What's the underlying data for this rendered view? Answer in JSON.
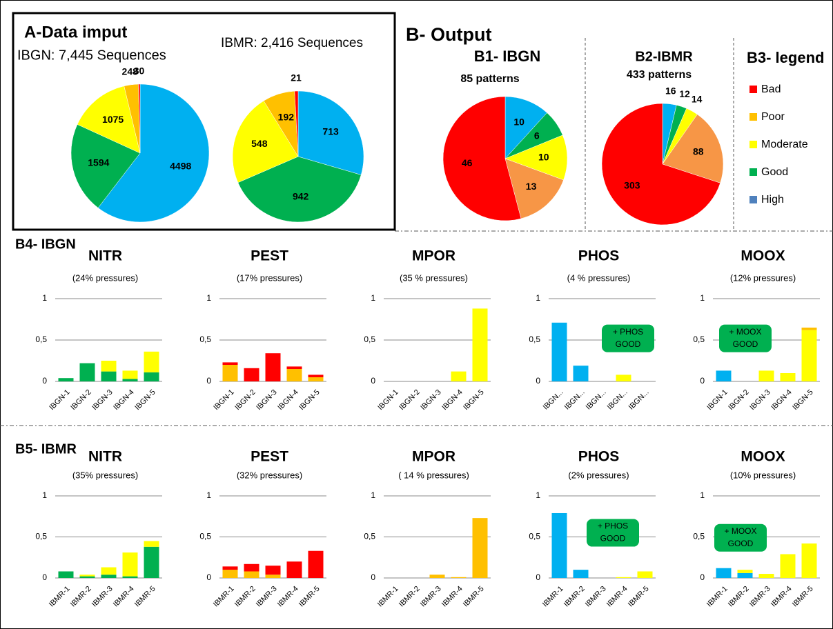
{
  "sections": {
    "a": "A-Data imput",
    "b": "B- Output",
    "b4": "B4- IBGN",
    "b5": "B5- IBMR"
  },
  "legend": {
    "title": "B3- legend",
    "items": [
      {
        "name": "Bad",
        "color": "#ff0000"
      },
      {
        "name": "Poor",
        "color": "#ffc000"
      },
      {
        "name": "Moderate",
        "color": "#ffff00"
      },
      {
        "name": "Good",
        "color": "#00b050"
      },
      {
        "name": "High",
        "color": "#4f81bd"
      }
    ]
  },
  "chart_data": [
    {
      "type": "pie",
      "title": "IBGN: 7,445 Sequences",
      "values": [
        4498,
        1594,
        1075,
        248,
        30
      ],
      "colors": [
        "#00b0f0",
        "#00b050",
        "#ffff00",
        "#ffc000",
        "#ff0000"
      ]
    },
    {
      "type": "pie",
      "title": "IBMR: 2,416 Sequences",
      "values": [
        713,
        942,
        548,
        192,
        21
      ],
      "colors": [
        "#00b0f0",
        "#00b050",
        "#ffff00",
        "#ffc000",
        "#ff0000"
      ]
    },
    {
      "type": "pie",
      "title": "B1- IBGN",
      "subtitle": "85 patterns",
      "values": [
        10,
        6,
        10,
        13,
        46
      ],
      "colors": [
        "#00b0f0",
        "#00b050",
        "#ffff00",
        "#f79646",
        "#ff0000"
      ]
    },
    {
      "type": "pie",
      "title": "B2-IBMR",
      "subtitle": "433 patterns",
      "values": [
        16,
        12,
        14,
        88,
        303
      ],
      "colors": [
        "#00b0f0",
        "#00b050",
        "#ffff00",
        "#f79646",
        "#ff0000"
      ]
    },
    {
      "type": "bar",
      "title": "NITR",
      "subtitle": "(24% pressures)",
      "categories": [
        "IBGN-1",
        "IBGN-2",
        "IBGN-3",
        "IBGN-4",
        "IBGN-5"
      ],
      "ylim": [
        0,
        1
      ],
      "yticks": [
        0,
        {
          "value": 0.5,
          "label": "0,5"
        },
        1
      ],
      "series": [
        {
          "color": "#00b050",
          "values": [
            0.04,
            0.22,
            0.12,
            0.03,
            0.11
          ]
        },
        {
          "color": "#ffff00",
          "values": [
            0,
            0,
            0.13,
            0.1,
            0.25
          ]
        }
      ]
    },
    {
      "type": "bar",
      "title": "PEST",
      "subtitle": "(17% pressures)",
      "categories": [
        "IBGN-1",
        "IBGN-2",
        "IBGN-3",
        "IBGN-4",
        "IBGN-5"
      ],
      "ylim": [
        0,
        1
      ],
      "yticks": [
        0,
        {
          "value": 0.5,
          "label": "0,5"
        },
        1
      ],
      "series": [
        {
          "color": "#ffc000",
          "values": [
            0.2,
            0,
            0,
            0.15,
            0.05
          ]
        },
        {
          "color": "#ff0000",
          "values": [
            0.03,
            0.16,
            0.34,
            0.03,
            0.03
          ]
        }
      ]
    },
    {
      "type": "bar",
      "title": "MPOR",
      "subtitle": "(35 % pressures)",
      "categories": [
        "IBGN-1",
        "IBGN-2",
        "IBGN-3",
        "IBGN-4",
        "IBGN-5"
      ],
      "ylim": [
        0,
        1
      ],
      "yticks": [
        0,
        {
          "value": 0.5,
          "label": "0,5"
        },
        1
      ],
      "series": [
        {
          "color": "#ffff00",
          "values": [
            0,
            0,
            0,
            0.12,
            0.88
          ]
        }
      ]
    },
    {
      "type": "bar",
      "title": "PHOS",
      "subtitle": "(4 % pressures)",
      "categories": [
        "IBGN...",
        "IBGN...",
        "IBGN...",
        "IBGN...",
        "IBGN..."
      ],
      "ylim": [
        0,
        1
      ],
      "yticks": [
        0,
        {
          "value": 0.5,
          "label": "0,5"
        },
        1
      ],
      "annotation": [
        "+ PHOS",
        "GOOD"
      ],
      "series": [
        {
          "color": "#00b0f0",
          "values": [
            0.71,
            0.19,
            0,
            0,
            0
          ]
        },
        {
          "color": "#ffff00",
          "values": [
            0,
            0,
            0,
            0.08,
            0
          ]
        }
      ]
    },
    {
      "type": "bar",
      "title": "MOOX",
      "subtitle": "(12% pressures)",
      "categories": [
        "IBGN-1",
        "IBGN-2",
        "IBGN-3",
        "IBGN-4",
        "IBGN-5"
      ],
      "ylim": [
        0,
        1
      ],
      "yticks": [
        0,
        {
          "value": 0.5,
          "label": "0,5"
        },
        1
      ],
      "annotation": [
        "+ MOOX",
        "GOOD"
      ],
      "series": [
        {
          "color": "#00b0f0",
          "values": [
            0.13,
            0,
            0,
            0,
            0
          ]
        },
        {
          "color": "#ffff00",
          "values": [
            0,
            0,
            0.13,
            0.1,
            0.62
          ]
        },
        {
          "color": "#ffc000",
          "values": [
            0,
            0,
            0,
            0,
            0.03
          ]
        }
      ]
    },
    {
      "type": "bar",
      "title": "NITR",
      "subtitle": "(35% pressures)",
      "categories": [
        "IBMR-1",
        "IBMR-2",
        "IBMR-3",
        "IBMR-4",
        "IBMR-5"
      ],
      "ylim": [
        0,
        1
      ],
      "yticks": [
        0,
        {
          "value": 0.5,
          "label": "0,5"
        },
        1
      ],
      "series": [
        {
          "color": "#00b050",
          "values": [
            0.08,
            0.02,
            0.04,
            0.02,
            0.38
          ]
        },
        {
          "color": "#ffff00",
          "values": [
            0,
            0.02,
            0.09,
            0.29,
            0.07
          ]
        }
      ]
    },
    {
      "type": "bar",
      "title": "PEST",
      "subtitle": "(32% pressures)",
      "categories": [
        "IBMR-1",
        "IBMR-2",
        "IBMR-3",
        "IBMR-4",
        "IBMR-5"
      ],
      "ylim": [
        0,
        1
      ],
      "yticks": [
        0,
        {
          "value": 0.5,
          "label": "0,5"
        },
        1
      ],
      "series": [
        {
          "color": "#ffc000",
          "values": [
            0.1,
            0.08,
            0.04,
            0,
            0
          ]
        },
        {
          "color": "#ff0000",
          "values": [
            0.04,
            0.09,
            0.11,
            0.2,
            0.33
          ]
        }
      ]
    },
    {
      "type": "bar",
      "title": "MPOR",
      "subtitle": "( 14 % pressures)",
      "categories": [
        "IBMR-1",
        "IBMR-2",
        "IBMR-3",
        "IBMR-4",
        "IBMR-5"
      ],
      "ylim": [
        0,
        1
      ],
      "yticks": [
        0,
        {
          "value": 0.5,
          "label": "0,5"
        },
        1
      ],
      "series": [
        {
          "color": "#ffc000",
          "values": [
            0,
            0,
            0.04,
            0.01,
            0.73
          ]
        }
      ]
    },
    {
      "type": "bar",
      "title": "PHOS",
      "subtitle": "(2% pressures)",
      "categories": [
        "IBMR-1",
        "IBMR-2",
        "IBMR-3",
        "IBMR-4",
        "IBMR-5"
      ],
      "ylim": [
        0,
        1
      ],
      "yticks": [
        0,
        {
          "value": 0.5,
          "label": "0,5"
        },
        1
      ],
      "annotation": [
        "+ PHOS",
        "GOOD"
      ],
      "series": [
        {
          "color": "#00b0f0",
          "values": [
            0.79,
            0.1,
            0,
            0,
            0
          ]
        },
        {
          "color": "#ffff00",
          "values": [
            0,
            0,
            0,
            0.01,
            0.08
          ]
        }
      ]
    },
    {
      "type": "bar",
      "title": "MOOX",
      "subtitle": "(10% pressures)",
      "categories": [
        "IBMR-1",
        "IBMR-2",
        "IBMR-3",
        "IBMR-4",
        "IBMR-5"
      ],
      "ylim": [
        0,
        1
      ],
      "yticks": [
        0,
        {
          "value": 0.5,
          "label": "0,5"
        },
        1
      ],
      "annotation": [
        "+ MOOX",
        "GOOD"
      ],
      "series": [
        {
          "color": "#00b0f0",
          "values": [
            0.12,
            0.06,
            0,
            0,
            0
          ]
        },
        {
          "color": "#ffff00",
          "values": [
            0,
            0.04,
            0.05,
            0.29,
            0.42
          ]
        }
      ]
    }
  ]
}
